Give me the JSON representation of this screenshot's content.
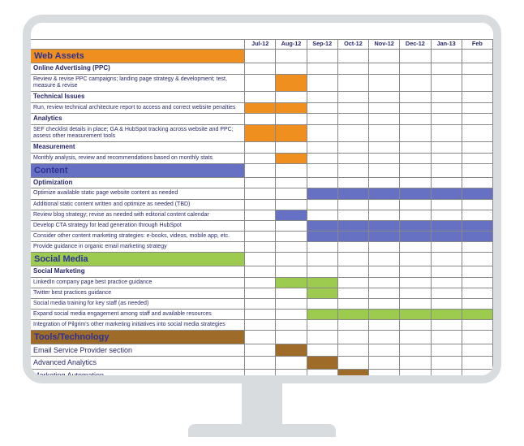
{
  "colors": {
    "orange": "#ef8f1f",
    "blue": "#6771c3",
    "green": "#9ccb4f",
    "brown": "#9e6b28",
    "border": "#888888",
    "text": "#2a2a6a",
    "hdr_text": "#2e3192",
    "monitor_frame": "#d9dcdf",
    "background": "#ffffff"
  },
  "typography": {
    "font_family": "Arial",
    "section_hdr_pt": 11,
    "sub_hdr_pt": 8,
    "task_pt": 7,
    "th_pt": 7.3
  },
  "months": [
    "Jul-12",
    "Aug-12",
    "Sep-12",
    "Oct-12",
    "Nov-12",
    "Dec-12",
    "Jan-13",
    "Feb"
  ],
  "rows": [
    {
      "type": "section",
      "label": "Web Assets",
      "fill": "orange"
    },
    {
      "type": "sub",
      "label": "Online Advertising (PPC)"
    },
    {
      "type": "task",
      "label": "Review & revise PPC campaigns; landing page strategy & development; test, measure & revise",
      "cells": [
        "",
        "orange",
        "",
        "",
        "",
        "",
        "",
        ""
      ]
    },
    {
      "type": "sub",
      "label": "Technical Issues"
    },
    {
      "type": "task",
      "label": "Run, review technical architecture report to access and correct website penalties",
      "cells": [
        "orange",
        "orange",
        "",
        "",
        "",
        "",
        "",
        ""
      ]
    },
    {
      "type": "sub",
      "label": "Analytics"
    },
    {
      "type": "task",
      "label": "SEF checklist details in place; GA & HubSpot tracking across website and PPC; assess other measurement tools",
      "cells": [
        "orange",
        "orange",
        "",
        "",
        "",
        "",
        "",
        ""
      ]
    },
    {
      "type": "sub",
      "label": "Measurement"
    },
    {
      "type": "task",
      "label": "Monthly analysis, review and recommendations based on monthly stats",
      "cells": [
        "",
        "orange",
        "",
        "",
        "",
        "",
        "",
        ""
      ]
    },
    {
      "type": "section",
      "label": "Content",
      "fill": "blue"
    },
    {
      "type": "sub",
      "label": "Optimization"
    },
    {
      "type": "task",
      "label": "Optimize available static page website content as needed",
      "cells": [
        "",
        "",
        "blue",
        "blue",
        "blue",
        "blue",
        "blue",
        "blue"
      ]
    },
    {
      "type": "task",
      "label": "Additional static content written and optimize as needed (TBD)",
      "cells": [
        "",
        "",
        "",
        "",
        "",
        "",
        "",
        ""
      ]
    },
    {
      "type": "task",
      "label": "Review blog strategy; revise as needed with editorial content calendar",
      "cells": [
        "",
        "blue",
        "",
        "",
        "",
        "",
        "",
        ""
      ]
    },
    {
      "type": "task",
      "label": "Develop CTA strategy for lead generation through HubSpot",
      "cells": [
        "",
        "",
        "blue",
        "blue",
        "blue",
        "blue",
        "blue",
        "blue"
      ]
    },
    {
      "type": "task",
      "label": "Consider other content marketing strategies: e-books, videos, mobile app, etc.",
      "cells": [
        "",
        "",
        "blue",
        "blue",
        "blue",
        "blue",
        "blue",
        "blue"
      ]
    },
    {
      "type": "task",
      "label": "Provide guidance in organic email marketing strategy",
      "cells": [
        "",
        "",
        "",
        "",
        "",
        "",
        "",
        ""
      ]
    },
    {
      "type": "section",
      "label": "Social Media",
      "fill": "green"
    },
    {
      "type": "sub",
      "label": "Social Marketing"
    },
    {
      "type": "task",
      "label": "LinkedIn company page best practice guidance",
      "cells": [
        "",
        "green",
        "green",
        "",
        "",
        "",
        "",
        ""
      ]
    },
    {
      "type": "task",
      "label": "Twitter best practices guidance",
      "cells": [
        "",
        "",
        "green",
        "",
        "",
        "",
        "",
        ""
      ]
    },
    {
      "type": "task",
      "label": "Social media training for key staff (as needed)",
      "cells": [
        "",
        "",
        "",
        "",
        "",
        "",
        "",
        ""
      ]
    },
    {
      "type": "task",
      "label": "Expand social media engagement among staff and available resources",
      "cells": [
        "",
        "",
        "green",
        "green",
        "green",
        "green",
        "green",
        "green"
      ]
    },
    {
      "type": "task",
      "label": "Integration of Pilgrim's other marketing initiatives into social media strategies",
      "cells": [
        "",
        "",
        "",
        "",
        "",
        "",
        "",
        ""
      ]
    },
    {
      "type": "section",
      "label": "Tools/Technology",
      "fill": "brown"
    },
    {
      "type": "task-big",
      "label": "Email Service Provider section",
      "cells": [
        "",
        "brown",
        "",
        "",
        "",
        "",
        "",
        ""
      ]
    },
    {
      "type": "task-big",
      "label": "Advanced Analytics",
      "cells": [
        "",
        "",
        "brown",
        "",
        "",
        "",
        "",
        ""
      ]
    },
    {
      "type": "task-big",
      "label": "Marketing Automation",
      "cells": [
        "",
        "",
        "",
        "brown",
        "",
        "",
        "",
        ""
      ]
    }
  ]
}
